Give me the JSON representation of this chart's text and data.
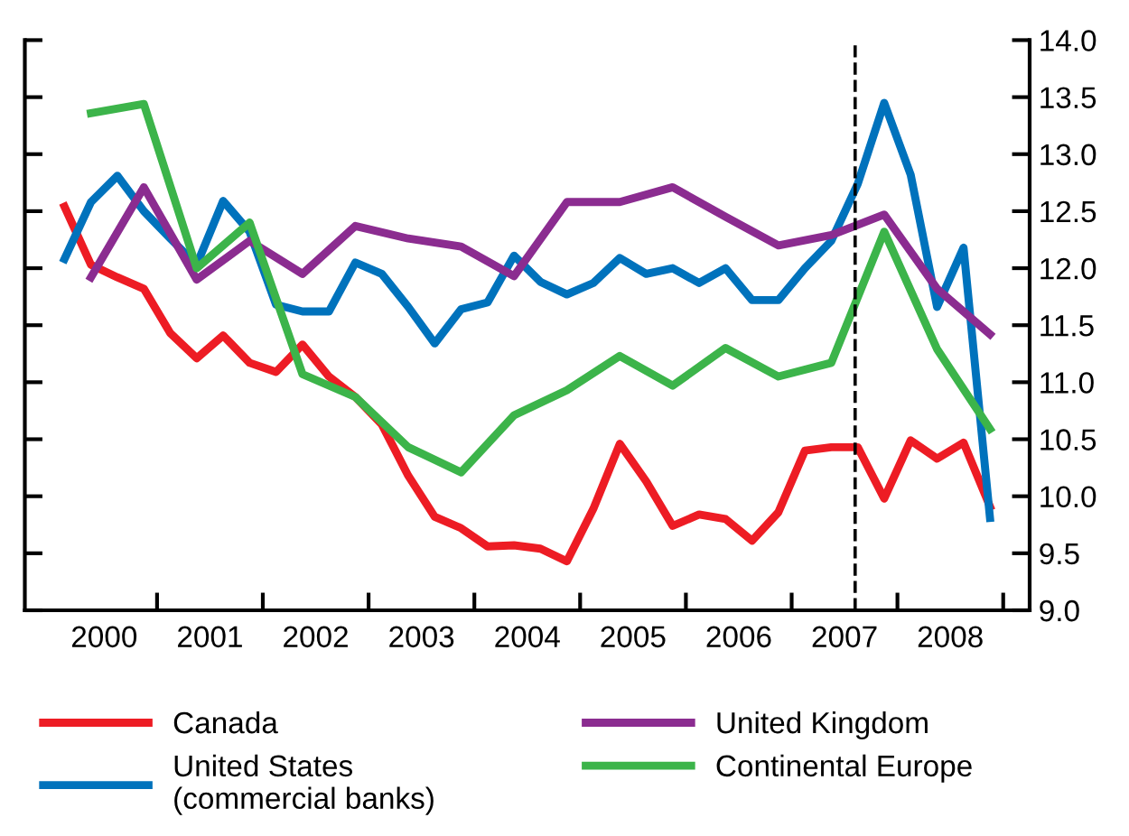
{
  "chart_data": {
    "type": "line",
    "x": [
      2000.125,
      2000.375,
      2000.625,
      2000.875,
      2001.125,
      2001.375,
      2001.625,
      2001.875,
      2002.125,
      2002.375,
      2002.625,
      2002.875,
      2003.125,
      2003.375,
      2003.625,
      2003.875,
      2004.125,
      2004.375,
      2004.625,
      2004.875,
      2005.125,
      2005.375,
      2005.625,
      2005.875,
      2006.125,
      2006.375,
      2006.625,
      2006.875,
      2007.125,
      2007.375,
      2007.625,
      2007.875,
      2008.125,
      2008.375,
      2008.625,
      2008.875
    ],
    "series": [
      {
        "name": "Canada",
        "color": "#ed1c24",
        "values": [
          12.54,
          12.03,
          11.92,
          11.82,
          11.43,
          11.21,
          11.41,
          11.17,
          11.09,
          11.33,
          11.05,
          10.87,
          10.63,
          10.18,
          9.82,
          9.72,
          9.56,
          9.57,
          9.54,
          9.43,
          9.89,
          10.46,
          10.13,
          9.74,
          9.84,
          9.8,
          9.61,
          9.86,
          10.4,
          10.43,
          10.43,
          9.98,
          10.49,
          10.33,
          10.47,
          9.91
        ]
      },
      {
        "name": "United States\n(commercial banks)",
        "color": "#0072bc",
        "values": [
          12.08,
          12.58,
          12.81,
          12.5,
          12.26,
          12.03,
          12.59,
          12.32,
          11.68,
          11.62,
          11.62,
          12.05,
          11.95,
          11.66,
          11.34,
          11.64,
          11.7,
          12.11,
          11.88,
          11.77,
          11.87,
          12.09,
          11.95,
          12.0,
          11.87,
          12.0,
          11.72,
          11.72,
          12.0,
          12.24,
          12.74,
          13.45,
          12.82,
          11.66,
          12.18,
          9.81
        ]
      },
      {
        "name": "United Kingdom",
        "color": "#8b2c90",
        "x": [
          2000.375,
          2000.875,
          2001.375,
          2001.875,
          2002.375,
          2002.875,
          2003.375,
          2003.875,
          2004.375,
          2004.875,
          2005.375,
          2005.875,
          2006.375,
          2006.875,
          2007.375,
          2007.875,
          2008.375,
          2008.875
        ],
        "values": [
          11.92,
          12.71,
          11.9,
          12.24,
          11.95,
          12.37,
          12.26,
          12.19,
          11.93,
          12.58,
          12.58,
          12.71,
          12.45,
          12.2,
          12.29,
          12.47,
          11.82,
          11.42
        ]
      },
      {
        "name": "Continental Europe",
        "color": "#3cb44a",
        "x": [
          2000.375,
          2000.875,
          2001.375,
          2001.875,
          2002.375,
          2002.875,
          2003.375,
          2003.875,
          2004.375,
          2004.875,
          2005.375,
          2005.875,
          2006.375,
          2006.875,
          2007.375,
          2007.875,
          2008.375,
          2008.875
        ],
        "values": [
          13.36,
          13.44,
          12.0,
          12.4,
          11.07,
          10.87,
          10.43,
          10.21,
          10.71,
          10.93,
          11.23,
          10.97,
          11.3,
          11.05,
          11.17,
          12.32,
          11.29,
          10.59
        ]
      }
    ],
    "xlim": [
      1999.75,
      2009.25
    ],
    "xticks": [
      {
        "value": 2001,
        "label": null
      },
      {
        "value": 2002,
        "label": null
      },
      {
        "value": 2003,
        "label": null
      },
      {
        "value": 2004,
        "label": null
      },
      {
        "value": 2005,
        "label": null
      },
      {
        "value": 2006,
        "label": null
      },
      {
        "value": 2007,
        "label": null
      },
      {
        "value": 2008,
        "label": null
      },
      {
        "value": 2009,
        "label": null
      },
      {
        "value": 2000.5,
        "label": "2000"
      },
      {
        "value": 2001.5,
        "label": "2001"
      },
      {
        "value": 2002.5,
        "label": "2002"
      },
      {
        "value": 2003.5,
        "label": "2003"
      },
      {
        "value": 2004.5,
        "label": "2004"
      },
      {
        "value": 2005.5,
        "label": "2005"
      },
      {
        "value": 2006.5,
        "label": "2006"
      },
      {
        "value": 2007.5,
        "label": "2007"
      },
      {
        "value": 2008.5,
        "label": "2008"
      }
    ],
    "ylim": [
      9.0,
      14.0
    ],
    "yticks": [
      {
        "value": 9.0,
        "label": "9.0"
      },
      {
        "value": 9.5,
        "label": "9.5"
      },
      {
        "value": 10.0,
        "label": "10.0"
      },
      {
        "value": 10.5,
        "label": "10.5"
      },
      {
        "value": 11.0,
        "label": "11.0"
      },
      {
        "value": 11.5,
        "label": "11.5"
      },
      {
        "value": 12.0,
        "label": "12.0"
      },
      {
        "value": 12.5,
        "label": "12.5"
      },
      {
        "value": 13.0,
        "label": "13.0"
      },
      {
        "value": 13.5,
        "label": "13.5"
      },
      {
        "value": 14.0,
        "label": "14.0"
      }
    ],
    "ref_lines": [
      {
        "axis": "x",
        "value": 2007.6,
        "label": null,
        "color": "#000000",
        "line_style": "dashed"
      }
    ],
    "grid": false,
    "legend": "bottom",
    "marker": "none",
    "line_style": "solid"
  }
}
